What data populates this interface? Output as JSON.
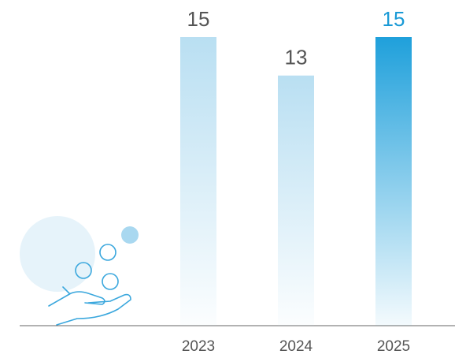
{
  "chart_data": {
    "type": "bar",
    "categories": [
      "2023",
      "2024",
      "2025"
    ],
    "values": [
      15,
      13,
      15
    ],
    "colors": [
      "#b9dff2",
      "#b9dff2",
      "#1fa0db"
    ],
    "label_colors": [
      "#555555",
      "#555555",
      "#1a9ad6"
    ]
  }
}
